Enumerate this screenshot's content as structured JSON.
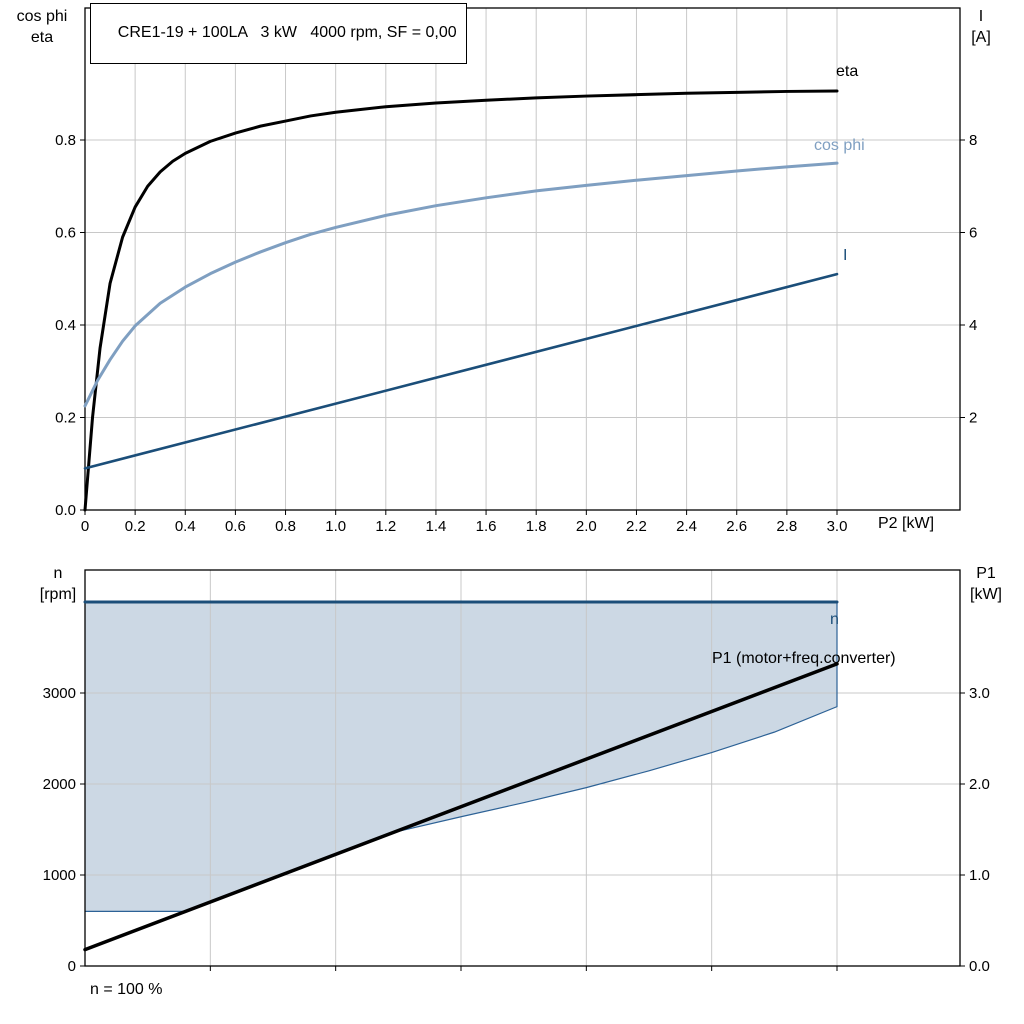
{
  "colors": {
    "grid": "#c8c8c8",
    "axis": "#000000",
    "background": "#ffffff"
  },
  "chart_data": [
    {
      "type": "line",
      "title": "CRE1-19 + 100LA   3 kW   4000 rpm, SF = 0,00",
      "xlabel": "P2 [kW]",
      "ylabel_left_lines": [
        "cos phi",
        "eta"
      ],
      "ylabel_right_lines": [
        "I",
        "[A]"
      ],
      "xlim": [
        0,
        3.49
      ],
      "ylim_left": [
        0,
        1.085
      ],
      "ylim_right": [
        0,
        10.85
      ],
      "legend_position": "end-of-curve",
      "grid": "on",
      "xticks": {
        "values": [
          0,
          0.2,
          0.4,
          0.6,
          0.8,
          1.0,
          1.2,
          1.4,
          1.6,
          1.8,
          2.0,
          2.2,
          2.4,
          2.6,
          2.8,
          3.0
        ],
        "labels": [
          "0",
          "0.2",
          "0.4",
          "0.6",
          "0.8",
          "1.0",
          "1.2",
          "1.4",
          "1.6",
          "1.8",
          "2.0",
          "2.2",
          "2.4",
          "2.6",
          "2.8",
          "3.0"
        ]
      },
      "yticks_left": {
        "values": [
          0,
          0.2,
          0.4,
          0.6,
          0.8
        ],
        "labels": [
          "0.0",
          "0.2",
          "0.4",
          "0.6",
          "0.8"
        ]
      },
      "yticks_right": {
        "values": [
          2,
          4,
          6,
          8
        ],
        "labels": [
          "2",
          "4",
          "6",
          "8"
        ]
      },
      "grid_x": [
        0.2,
        0.4,
        0.6,
        0.8,
        1.0,
        1.2,
        1.4,
        1.6,
        1.8,
        2.0,
        2.2,
        2.4,
        2.6,
        2.8,
        3.0
      ],
      "grid_y": [
        0.2,
        0.4,
        0.6,
        0.8
      ],
      "series": [
        {
          "name": "eta",
          "axis": "left",
          "color": "#000000",
          "width": 3,
          "x": [
            0,
            0.03,
            0.06,
            0.1,
            0.15,
            0.2,
            0.25,
            0.3,
            0.35,
            0.4,
            0.5,
            0.6,
            0.7,
            0.8,
            0.9,
            1.0,
            1.2,
            1.4,
            1.6,
            1.8,
            2.0,
            2.2,
            2.4,
            2.6,
            2.8,
            3.0
          ],
          "y": [
            0,
            0.2,
            0.35,
            0.49,
            0.59,
            0.655,
            0.7,
            0.731,
            0.754,
            0.771,
            0.797,
            0.815,
            0.83,
            0.841,
            0.852,
            0.86,
            0.872,
            0.88,
            0.886,
            0.891,
            0.895,
            0.898,
            0.901,
            0.903,
            0.905,
            0.906
          ]
        },
        {
          "name": "cos phi",
          "axis": "left",
          "color": "#7f9fc1",
          "width": 3,
          "x": [
            0,
            0.05,
            0.1,
            0.15,
            0.2,
            0.3,
            0.4,
            0.5,
            0.6,
            0.7,
            0.8,
            0.9,
            1.0,
            1.2,
            1.4,
            1.6,
            1.8,
            2.0,
            2.2,
            2.4,
            2.6,
            2.8,
            3.0
          ],
          "y": [
            0.225,
            0.28,
            0.325,
            0.365,
            0.398,
            0.447,
            0.482,
            0.511,
            0.536,
            0.558,
            0.578,
            0.596,
            0.611,
            0.637,
            0.658,
            0.675,
            0.69,
            0.702,
            0.713,
            0.723,
            0.733,
            0.742,
            0.75
          ]
        },
        {
          "name": "I",
          "axis": "right",
          "color": "#1b4e79",
          "width": 2.6,
          "x": [
            0,
            3.0
          ],
          "y": [
            0.9,
            5.1
          ]
        }
      ]
    },
    {
      "type": "line",
      "xlabel": "",
      "ylabel_left_lines": [
        "n",
        "[rpm]"
      ],
      "ylabel_right_lines": [
        "P1",
        "[kW]"
      ],
      "footnote": "n = 100 %",
      "xlim": [
        0,
        3.49
      ],
      "ylim_left": [
        0,
        4350
      ],
      "ylim_right": [
        0,
        4.35
      ],
      "grid": "on",
      "xticks": {
        "values": [
          0.5,
          1.0,
          1.5,
          2.0,
          2.5,
          3.0
        ],
        "labels": [
          "",
          "",
          "",
          "",
          "",
          ""
        ]
      },
      "yticks_left": {
        "values": [
          0,
          1000,
          2000,
          3000
        ],
        "labels": [
          "0",
          "1000",
          "2000",
          "3000"
        ]
      },
      "yticks_right": {
        "values": [
          0,
          1,
          2,
          3
        ],
        "labels": [
          "0.0",
          "1.0",
          "2.0",
          "3.0"
        ]
      },
      "grid_x": [
        0.5,
        1.0,
        1.5,
        2.0,
        2.5,
        3.0
      ],
      "grid_y": [
        1000,
        2000,
        3000
      ],
      "area": {
        "name": "speed-operating-range",
        "color": "#ccd8e4",
        "edge_color": "#2d6296",
        "upper_rpm": 4000,
        "lower": {
          "x": [
            0,
            0.4,
            0.5,
            0.75,
            1.0,
            1.25,
            1.5,
            1.75,
            2.0,
            2.25,
            2.5,
            2.75,
            3.0
          ],
          "rpm": [
            600,
            600,
            700,
            960,
            1225,
            1480,
            1640,
            1795,
            1960,
            2145,
            2345,
            2570,
            2850
          ]
        }
      },
      "series": [
        {
          "name": "n",
          "axis": "left",
          "color": "#1b4e79",
          "width": 3,
          "x": [
            0,
            3.0
          ],
          "y": [
            4000,
            4000
          ]
        },
        {
          "name": "P1 (motor+freq.converter)",
          "axis": "right",
          "color": "#000000",
          "width": 3.5,
          "x": [
            0,
            3.0
          ],
          "y": [
            0.18,
            3.32
          ]
        }
      ]
    }
  ]
}
